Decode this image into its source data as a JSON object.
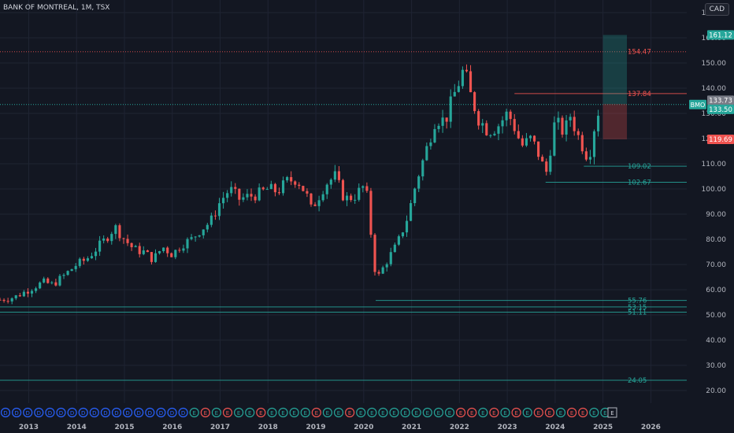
{
  "header": {
    "symbol_title": "BANK OF MONTREAL, 1M, TSX",
    "currency_button": "CAD"
  },
  "colors": {
    "background": "#131722",
    "grid": "#1f2433",
    "up": "#26a69a",
    "down": "#ef5350",
    "text": "#b2b5be"
  },
  "chart_data": {
    "type": "candlestick",
    "ylim": [
      15,
      175
    ],
    "y_ticks": [
      20,
      30,
      40,
      50,
      60,
      70,
      80,
      90,
      100,
      110,
      120,
      130,
      140,
      150,
      160,
      170
    ],
    "x_ticks": [
      {
        "label": "2013",
        "x": 2013.0
      },
      {
        "label": "2014",
        "x": 2014.0
      },
      {
        "label": "2015",
        "x": 2015.0
      },
      {
        "label": "2016",
        "x": 2016.0
      },
      {
        "label": "2017",
        "x": 2017.0
      },
      {
        "label": "2018",
        "x": 2018.0
      },
      {
        "label": "2019",
        "x": 2019.0
      },
      {
        "label": "2020",
        "x": 2020.0
      },
      {
        "label": "2021",
        "x": 2021.0
      },
      {
        "label": "2022",
        "x": 2022.0
      },
      {
        "label": "2023",
        "x": 2023.0
      },
      {
        "label": "2024",
        "x": 2024.0
      },
      {
        "label": "2025",
        "x": 2025.0
      },
      {
        "label": "2026",
        "x": 2026.0
      }
    ],
    "x_range": [
      2012.4,
      2026.75
    ],
    "close_anchors": [
      [
        2012.4,
        56
      ],
      [
        2012.7,
        57
      ],
      [
        2013.0,
        60
      ],
      [
        2013.3,
        63
      ],
      [
        2013.5,
        62
      ],
      [
        2013.7,
        65
      ],
      [
        2014.0,
        70
      ],
      [
        2014.2,
        72
      ],
      [
        2014.4,
        76
      ],
      [
        2014.6,
        80
      ],
      [
        2014.8,
        85
      ],
      [
        2015.0,
        80
      ],
      [
        2015.2,
        76
      ],
      [
        2015.4,
        75
      ],
      [
        2015.6,
        72
      ],
      [
        2015.8,
        77
      ],
      [
        2016.0,
        74
      ],
      [
        2016.2,
        78
      ],
      [
        2016.4,
        80
      ],
      [
        2016.6,
        84
      ],
      [
        2016.8,
        87
      ],
      [
        2017.0,
        95
      ],
      [
        2017.2,
        100
      ],
      [
        2017.4,
        96
      ],
      [
        2017.6,
        97
      ],
      [
        2017.8,
        98
      ],
      [
        2018.0,
        100
      ],
      [
        2018.2,
        99
      ],
      [
        2018.4,
        103
      ],
      [
        2018.6,
        104
      ],
      [
        2018.8,
        98
      ],
      [
        2018.9,
        92
      ],
      [
        2019.0,
        95
      ],
      [
        2019.2,
        102
      ],
      [
        2019.4,
        105
      ],
      [
        2019.6,
        96
      ],
      [
        2019.8,
        97
      ],
      [
        2020.0,
        101
      ],
      [
        2020.1,
        95
      ],
      [
        2020.2,
        70
      ],
      [
        2020.3,
        65
      ],
      [
        2020.5,
        72
      ],
      [
        2020.7,
        78
      ],
      [
        2020.9,
        88
      ],
      [
        2021.0,
        95
      ],
      [
        2021.1,
        103
      ],
      [
        2021.3,
        115
      ],
      [
        2021.5,
        128
      ],
      [
        2021.7,
        127
      ],
      [
        2021.9,
        138
      ],
      [
        2022.0,
        143
      ],
      [
        2022.1,
        148
      ],
      [
        2022.2,
        139
      ],
      [
        2022.4,
        128
      ],
      [
        2022.6,
        123
      ],
      [
        2022.8,
        125
      ],
      [
        2023.0,
        130
      ],
      [
        2023.1,
        127
      ],
      [
        2023.3,
        117
      ],
      [
        2023.5,
        120
      ],
      [
        2023.7,
        112
      ],
      [
        2023.8,
        105
      ],
      [
        2024.0,
        127
      ],
      [
        2024.2,
        122
      ],
      [
        2024.3,
        130
      ],
      [
        2024.5,
        120
      ],
      [
        2024.7,
        112
      ],
      [
        2024.85,
        128
      ],
      [
        2024.95,
        133.5
      ]
    ],
    "level_lines": [
      {
        "label": "154.47",
        "value": 154.47,
        "x_from": 2012.4,
        "color": "#ef5350",
        "style": "dotted"
      },
      {
        "label": "137.84",
        "value": 137.84,
        "x_from": 2023.15,
        "color": "#ef5350",
        "style": "solid"
      },
      {
        "label": "109.02",
        "value": 109.02,
        "x_from": 2024.6,
        "color": "#26a69a",
        "style": "solid"
      },
      {
        "label": "102.67",
        "value": 102.67,
        "x_from": 2023.8,
        "color": "#26a69a",
        "style": "solid"
      },
      {
        "label": "55.76",
        "value": 55.76,
        "x_from": 2020.25,
        "color": "#26a69a",
        "style": "solid"
      },
      {
        "label": "53.15",
        "value": 53.15,
        "x_from": 2012.4,
        "color": "#26a69a",
        "style": "solid"
      },
      {
        "label": "51.11",
        "value": 51.11,
        "x_from": 2012.4,
        "color": "#26a69a",
        "style": "solid"
      },
      {
        "label": "24.05",
        "value": 24.05,
        "x_from": 2012.4,
        "color": "#26a69a",
        "style": "solid"
      }
    ],
    "current_price_line": {
      "value": 133.5,
      "color": "#26a69a"
    },
    "position_tool": {
      "x_from": 2025.0,
      "x_to": 2025.5,
      "entry": 133.73,
      "target": 161.12,
      "stop": 119.69
    },
    "price_tags": [
      {
        "label": "161.12",
        "value": 161.12,
        "bg": "#26a69a",
        "fg": "#ffffff"
      },
      {
        "label": "133.73",
        "value": 135.2,
        "bg": "#787b86",
        "fg": "#ffffff"
      },
      {
        "label": "133.50",
        "value": 131.6,
        "bg": "#26a69a",
        "fg": "#ffffff"
      },
      {
        "label": "119.69",
        "value": 119.69,
        "bg": "#ef5350",
        "fg": "#ffffff"
      }
    ],
    "symbol_tag": {
      "label": "BMO",
      "value": 133.5
    },
    "events": {
      "x_from": 2012.4,
      "x_step": 0.25,
      "items": [
        "D",
        "D",
        "D",
        "D",
        "D",
        "D",
        "D",
        "D",
        "D",
        "D",
        "D",
        "D",
        "D",
        "D",
        "D",
        "D",
        "D",
        "E",
        "E",
        "E",
        "E",
        "E",
        "E",
        "E",
        "E",
        "E",
        "E",
        "E",
        "E",
        "E",
        "E",
        "E",
        "E",
        "E",
        "E",
        "E",
        "E",
        "E",
        "E",
        "E",
        "E",
        "E",
        "E",
        "E",
        "E",
        "E",
        "E",
        "E",
        "E",
        "E",
        "E",
        "E",
        "E",
        "E",
        "E"
      ],
      "down_flags": [
        18,
        20,
        23,
        28,
        31,
        41,
        42,
        44,
        46,
        48,
        49,
        51,
        52
      ],
      "last_item": "E"
    }
  }
}
